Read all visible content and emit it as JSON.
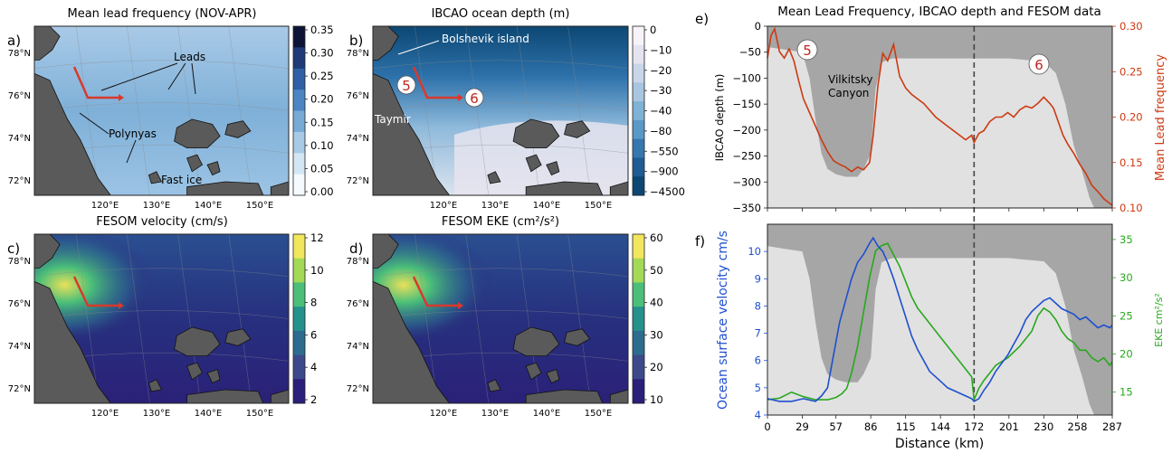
{
  "panels": {
    "a": {
      "letter": "a)",
      "title": "Mean lead frequency (NOV-APR)",
      "colorbar": {
        "ticks": [
          "0.35",
          "0.30",
          "0.25",
          "0.20",
          "0.15",
          "0.10",
          "0.05",
          "0.00"
        ],
        "colors": [
          "#0d1436",
          "#1f3a77",
          "#2f5fa5",
          "#4b86c2",
          "#77aad6",
          "#a8cae6",
          "#d3e6f3",
          "#f4fafd"
        ]
      },
      "annotations": {
        "leads": "Leads",
        "polynyas": "Polynyas",
        "fast_ice": "Fast ice"
      }
    },
    "b": {
      "letter": "b)",
      "title": "IBCAO ocean depth (m)",
      "colorbar": {
        "ticks": [
          "0",
          "−10",
          "−20",
          "−30",
          "−40",
          "−80",
          "−550",
          "−900",
          "−4500"
        ],
        "colors": [
          "#f7f3f9",
          "#e3e4f0",
          "#c9d6ea",
          "#a8c6e0",
          "#80b2d6",
          "#5a98c8",
          "#3777b0",
          "#205c93",
          "#0c4773"
        ]
      },
      "annotations": {
        "bolshevik": "Bolshevik island",
        "taymir": "Taymir",
        "marker5": "5",
        "marker6": "6"
      }
    },
    "c": {
      "letter": "c)",
      "title": "FESOM velocity (cm/s)",
      "colorbar": {
        "ticks": [
          "12",
          "10",
          "8",
          "6",
          "4",
          "2"
        ],
        "colors": [
          "#f1e65c",
          "#a3d957",
          "#4bbf79",
          "#25918c",
          "#2d6c8e",
          "#3c4a8c",
          "#2a1f7a"
        ]
      }
    },
    "d": {
      "letter": "d)",
      "title": "FESOM EKE (cm²/s²)",
      "colorbar": {
        "ticks": [
          "60",
          "50",
          "40",
          "30",
          "20",
          "10"
        ],
        "colors": [
          "#f1e65c",
          "#a3d957",
          "#4bbf79",
          "#25918c",
          "#2d6c8e",
          "#3c4a8c",
          "#2a1f7a"
        ]
      }
    },
    "e": {
      "letter": "e)"
    },
    "f": {
      "letter": "f)"
    }
  },
  "map_axes": {
    "lat_ticks": [
      "78°N",
      "76°N",
      "74°N",
      "72°N"
    ],
    "lon_ticks": [
      "120°E",
      "130°E",
      "140°E",
      "150°E"
    ]
  },
  "chart_data": [
    {
      "type": "line",
      "title": "Mean Lead Frequency, IBCAO depth and FESOM data",
      "xlabel": "",
      "ylabel": "IBCAO depth (m)",
      "y2label": "Mean Lead frequency",
      "xlim": [
        0,
        287
      ],
      "ylim": [
        -350,
        0
      ],
      "y2lim": [
        0.1,
        0.3
      ],
      "xticks": [
        "0",
        "29",
        "57",
        "86",
        "115",
        "144",
        "172",
        "201",
        "230",
        "258",
        "287"
      ],
      "yticks": [
        "0",
        "−50",
        "−100",
        "−150",
        "−200",
        "−250",
        "−300",
        "−350"
      ],
      "y2ticks": [
        "0.30",
        "0.25",
        "0.20",
        "0.15",
        "0.10"
      ],
      "vline_x": 172,
      "annotations": {
        "marker5": "5",
        "marker6": "6",
        "canyon": "Vilkitsky\nCanyon"
      },
      "series": [
        {
          "name": "IBCAO depth",
          "color": "#a6a6a6",
          "x": [
            0,
            14,
            29,
            35,
            40,
            45,
            50,
            57,
            65,
            75,
            80,
            86,
            90,
            95,
            100,
            104,
            108,
            115,
            130,
            144,
            160,
            172,
            190,
            201,
            215,
            230,
            240,
            248,
            255,
            262,
            268,
            272,
            287
          ],
          "values": [
            -40,
            -45,
            -50,
            -100,
            -180,
            -245,
            -275,
            -285,
            -290,
            -290,
            -275,
            -245,
            -120,
            -70,
            -65,
            -62,
            -62,
            -62,
            -62,
            -62,
            -62,
            -62,
            -62,
            -62,
            -65,
            -68,
            -90,
            -150,
            -230,
            -280,
            -330,
            -350,
            -350
          ]
        },
        {
          "name": "Mean Lead frequency",
          "color": "#cc3a12",
          "x": [
            0,
            3,
            6,
            10,
            14,
            18,
            22,
            26,
            30,
            35,
            40,
            45,
            50,
            55,
            60,
            65,
            70,
            75,
            80,
            85,
            88,
            92,
            96,
            100,
            105,
            110,
            115,
            120,
            130,
            140,
            150,
            160,
            165,
            170,
            172,
            176,
            180,
            185,
            190,
            195,
            200,
            205,
            210,
            215,
            220,
            225,
            230,
            235,
            238,
            242,
            246,
            250,
            255,
            260,
            265,
            270,
            275,
            280,
            285,
            287
          ],
          "values": [
            0.265,
            0.29,
            0.297,
            0.272,
            0.265,
            0.275,
            0.262,
            0.24,
            0.22,
            0.205,
            0.19,
            0.175,
            0.162,
            0.152,
            0.148,
            0.145,
            0.14,
            0.145,
            0.142,
            0.15,
            0.18,
            0.235,
            0.27,
            0.262,
            0.28,
            0.245,
            0.232,
            0.225,
            0.215,
            0.2,
            0.19,
            0.18,
            0.175,
            0.18,
            0.172,
            0.182,
            0.185,
            0.195,
            0.2,
            0.2,
            0.205,
            0.2,
            0.208,
            0.212,
            0.21,
            0.215,
            0.222,
            0.215,
            0.21,
            0.195,
            0.18,
            0.17,
            0.16,
            0.148,
            0.138,
            0.125,
            0.118,
            0.11,
            0.105,
            0.103
          ]
        }
      ]
    },
    {
      "type": "line",
      "title": "",
      "xlabel": "Distance (km)",
      "ylabel": "Ocean surface velocity cm/s",
      "y2label": "EKE cm²/s²",
      "xlim": [
        0,
        287
      ],
      "ylim": [
        4,
        11
      ],
      "y2lim": [
        12,
        37
      ],
      "xticks": [
        "0",
        "29",
        "57",
        "86",
        "115",
        "144",
        "172",
        "201",
        "230",
        "258",
        "287"
      ],
      "yticks": [
        "10",
        "9",
        "8",
        "7",
        "6",
        "5",
        "4"
      ],
      "y2ticks": [
        "35",
        "30",
        "25",
        "20",
        "15"
      ],
      "vline_x": 172,
      "series": [
        {
          "name": "Ocean surface velocity",
          "color": "#1f4fcf",
          "x": [
            0,
            10,
            20,
            30,
            40,
            45,
            50,
            55,
            60,
            65,
            70,
            75,
            80,
            85,
            88,
            92,
            96,
            100,
            105,
            110,
            115,
            120,
            125,
            130,
            135,
            140,
            145,
            150,
            155,
            160,
            165,
            170,
            172,
            176,
            180,
            185,
            190,
            195,
            200,
            205,
            210,
            215,
            220,
            225,
            230,
            235,
            240,
            245,
            250,
            255,
            260,
            265,
            270,
            275,
            280,
            285,
            287
          ],
          "values": [
            4.6,
            4.5,
            4.5,
            4.6,
            4.5,
            4.7,
            5.0,
            6.2,
            7.4,
            8.2,
            9.0,
            9.6,
            9.9,
            10.3,
            10.5,
            10.2,
            10.0,
            9.6,
            9.0,
            8.3,
            7.6,
            6.9,
            6.4,
            6.0,
            5.6,
            5.4,
            5.2,
            5.0,
            4.9,
            4.8,
            4.7,
            4.6,
            4.5,
            4.6,
            4.9,
            5.2,
            5.6,
            5.9,
            6.2,
            6.6,
            7.0,
            7.5,
            7.8,
            8.0,
            8.2,
            8.3,
            8.1,
            7.9,
            7.8,
            7.7,
            7.5,
            7.6,
            7.4,
            7.2,
            7.3,
            7.2,
            7.3
          ]
        },
        {
          "name": "EKE",
          "color": "#28a81e",
          "x": [
            0,
            10,
            20,
            30,
            40,
            50,
            57,
            62,
            66,
            70,
            75,
            80,
            85,
            90,
            95,
            100,
            105,
            110,
            115,
            120,
            125,
            130,
            140,
            150,
            160,
            170,
            172,
            176,
            180,
            185,
            190,
            200,
            210,
            220,
            225,
            230,
            235,
            240,
            245,
            250,
            255,
            260,
            265,
            270,
            275,
            280,
            285,
            287
          ],
          "values": [
            14.0,
            14.2,
            15.0,
            14.4,
            14.0,
            14.0,
            14.3,
            14.8,
            15.5,
            17.5,
            21.0,
            25.5,
            30.0,
            33.5,
            34.2,
            34.5,
            33.0,
            31.5,
            29.5,
            27.5,
            26.0,
            25.0,
            23.0,
            21.0,
            19.0,
            17.0,
            14.0,
            15.5,
            16.5,
            17.5,
            18.5,
            19.5,
            21.0,
            23.0,
            25.0,
            26.0,
            25.5,
            24.5,
            23.0,
            22.0,
            21.5,
            20.5,
            20.5,
            19.5,
            19.0,
            19.5,
            18.5,
            19.0
          ]
        }
      ]
    }
  ]
}
